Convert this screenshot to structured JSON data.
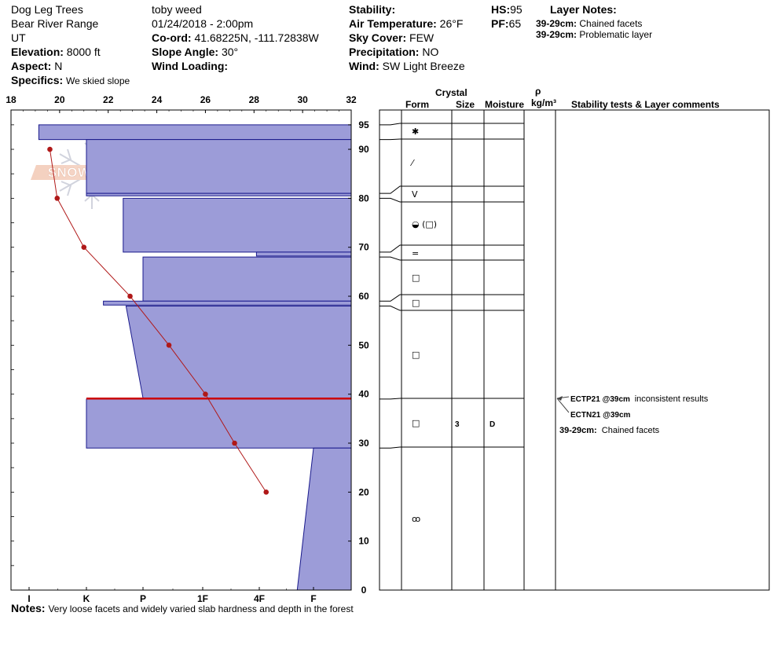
{
  "header": {
    "location": "Dog Leg Trees",
    "range": "Bear River Range",
    "state": "UT",
    "elevation_label": "Elevation:",
    "elevation": "8000 ft",
    "aspect_label": "Aspect:",
    "aspect": "N",
    "specifics_label": "Specifics:",
    "specifics": "We skied slope",
    "observer": "toby weed",
    "datetime": "01/24/2018 - 2:00pm",
    "coord_label": "Co-ord:",
    "coord": "41.68225N, -111.72838W",
    "slope_label": "Slope Angle:",
    "slope": "30°",
    "wind_loading_label": "Wind Loading:",
    "wind_loading": "",
    "stability_label": "Stability:",
    "stability": "",
    "air_temp_label": "Air Temperature:",
    "air_temp": "26°F",
    "sky_label": "Sky Cover:",
    "sky": "FEW",
    "precip_label": "Precipitation:",
    "precip": "NO",
    "wind_label": "Wind:",
    "wind": "SW Light Breeze",
    "hs_label": "HS:",
    "hs": "95",
    "pf_label": "PF:",
    "pf": "65",
    "layer_notes_title": "Layer Notes:",
    "layer_notes": [
      {
        "depth": "39-29cm:",
        "text": "Chained facets"
      },
      {
        "depth": "39-29cm:",
        "text": "Problematic layer"
      }
    ]
  },
  "notes_label": "Notes:",
  "notes": "Very loose facets and widely varied slab hardness and depth in the forest",
  "watermark_text": "SNOW PILOT",
  "table_headers": {
    "crystal": "Crystal",
    "form": "Form",
    "size": "Size",
    "moisture": "Moisture",
    "rho": "ρ",
    "density_unit": "kg/m³",
    "stability_comments": "Stability tests & Layer comments"
  },
  "colors": {
    "hardness_fill": "#9c9cd8",
    "hardness_stroke": "#1a1a8c",
    "temp_line": "#b01818",
    "crust_line": "#cc0000"
  },
  "chart_data": {
    "type": "line",
    "temp_axis": {
      "ticks": [
        18,
        20,
        22,
        24,
        26,
        28,
        30,
        32
      ],
      "range": [
        18,
        32
      ]
    },
    "height_axis": {
      "ticks": [
        0,
        10,
        20,
        30,
        40,
        50,
        60,
        70,
        80,
        90,
        95
      ],
      "range": [
        0,
        97
      ]
    },
    "hardness_axis": {
      "labels": [
        "I",
        "K",
        "P",
        "1F",
        "4F",
        "F"
      ]
    },
    "temperature_profile": {
      "heights": [
        90,
        80,
        70,
        60,
        50,
        40,
        30,
        20
      ],
      "temps": [
        19.6,
        19.9,
        21.0,
        22.9,
        24.5,
        26.0,
        27.2,
        28.5
      ]
    },
    "hardness_layers": [
      {
        "top": 95,
        "bottom": 92,
        "h_top": 0.17,
        "h_bottom": 0.17
      },
      {
        "top": 92,
        "bottom": 81,
        "h_top": 1.0,
        "h_bottom": 1.0
      },
      {
        "top": 81,
        "bottom": 80.5,
        "h_top": 1.0,
        "h_bottom": 1.0
      },
      {
        "top": 80,
        "bottom": 69,
        "h_top": 1.65,
        "h_bottom": 1.65
      },
      {
        "top": 69,
        "bottom": 68.2,
        "h_top": 3.95,
        "h_bottom": 3.95
      },
      {
        "top": 68,
        "bottom": 59,
        "h_top": 2.0,
        "h_bottom": 2.0
      },
      {
        "top": 59,
        "bottom": 58.2,
        "h_top": 1.3,
        "h_bottom": 1.3
      },
      {
        "top": 58,
        "bottom": 39.2,
        "h_top": 1.7,
        "h_bottom": 2.0
      },
      {
        "top": 39,
        "bottom": 29,
        "h_top": 1.0,
        "h_bottom": 1.0
      },
      {
        "top": 29,
        "bottom": 0,
        "h_top": 5.0,
        "h_bottom": 4.7
      }
    ],
    "crust_line": {
      "height": 39.1,
      "h": 1.0
    },
    "layer_boundaries": [
      95,
      92,
      81,
      80,
      69,
      68,
      59,
      58,
      39,
      29
    ],
    "grain_forms": [
      {
        "height": 93.5,
        "symbol": "✱"
      },
      {
        "height": 86.5,
        "symbol": "⁄"
      },
      {
        "height": 80.5,
        "symbol": "V"
      },
      {
        "height": 74.5,
        "symbol": "◒ (□)"
      },
      {
        "height": 68.5,
        "symbol": "="
      },
      {
        "height": 63.5,
        "symbol": "□"
      },
      {
        "height": 58.5,
        "symbol": "□"
      },
      {
        "height": 48.5,
        "symbol": "□"
      },
      {
        "height": 34.0,
        "symbol": "□"
      },
      {
        "height": 14.5,
        "symbol": "ꝏ"
      }
    ],
    "layer_details": [
      {
        "height": 34.0,
        "size": "3",
        "moisture": "D"
      }
    ],
    "stability_tests": [
      {
        "label": "ECTP21 @39cm",
        "comment": "inconsistent results"
      },
      {
        "label": "ECTN21 @39cm",
        "comment": ""
      }
    ],
    "layer_comment": {
      "depth": "39-29cm:",
      "text": "Chained facets"
    }
  }
}
